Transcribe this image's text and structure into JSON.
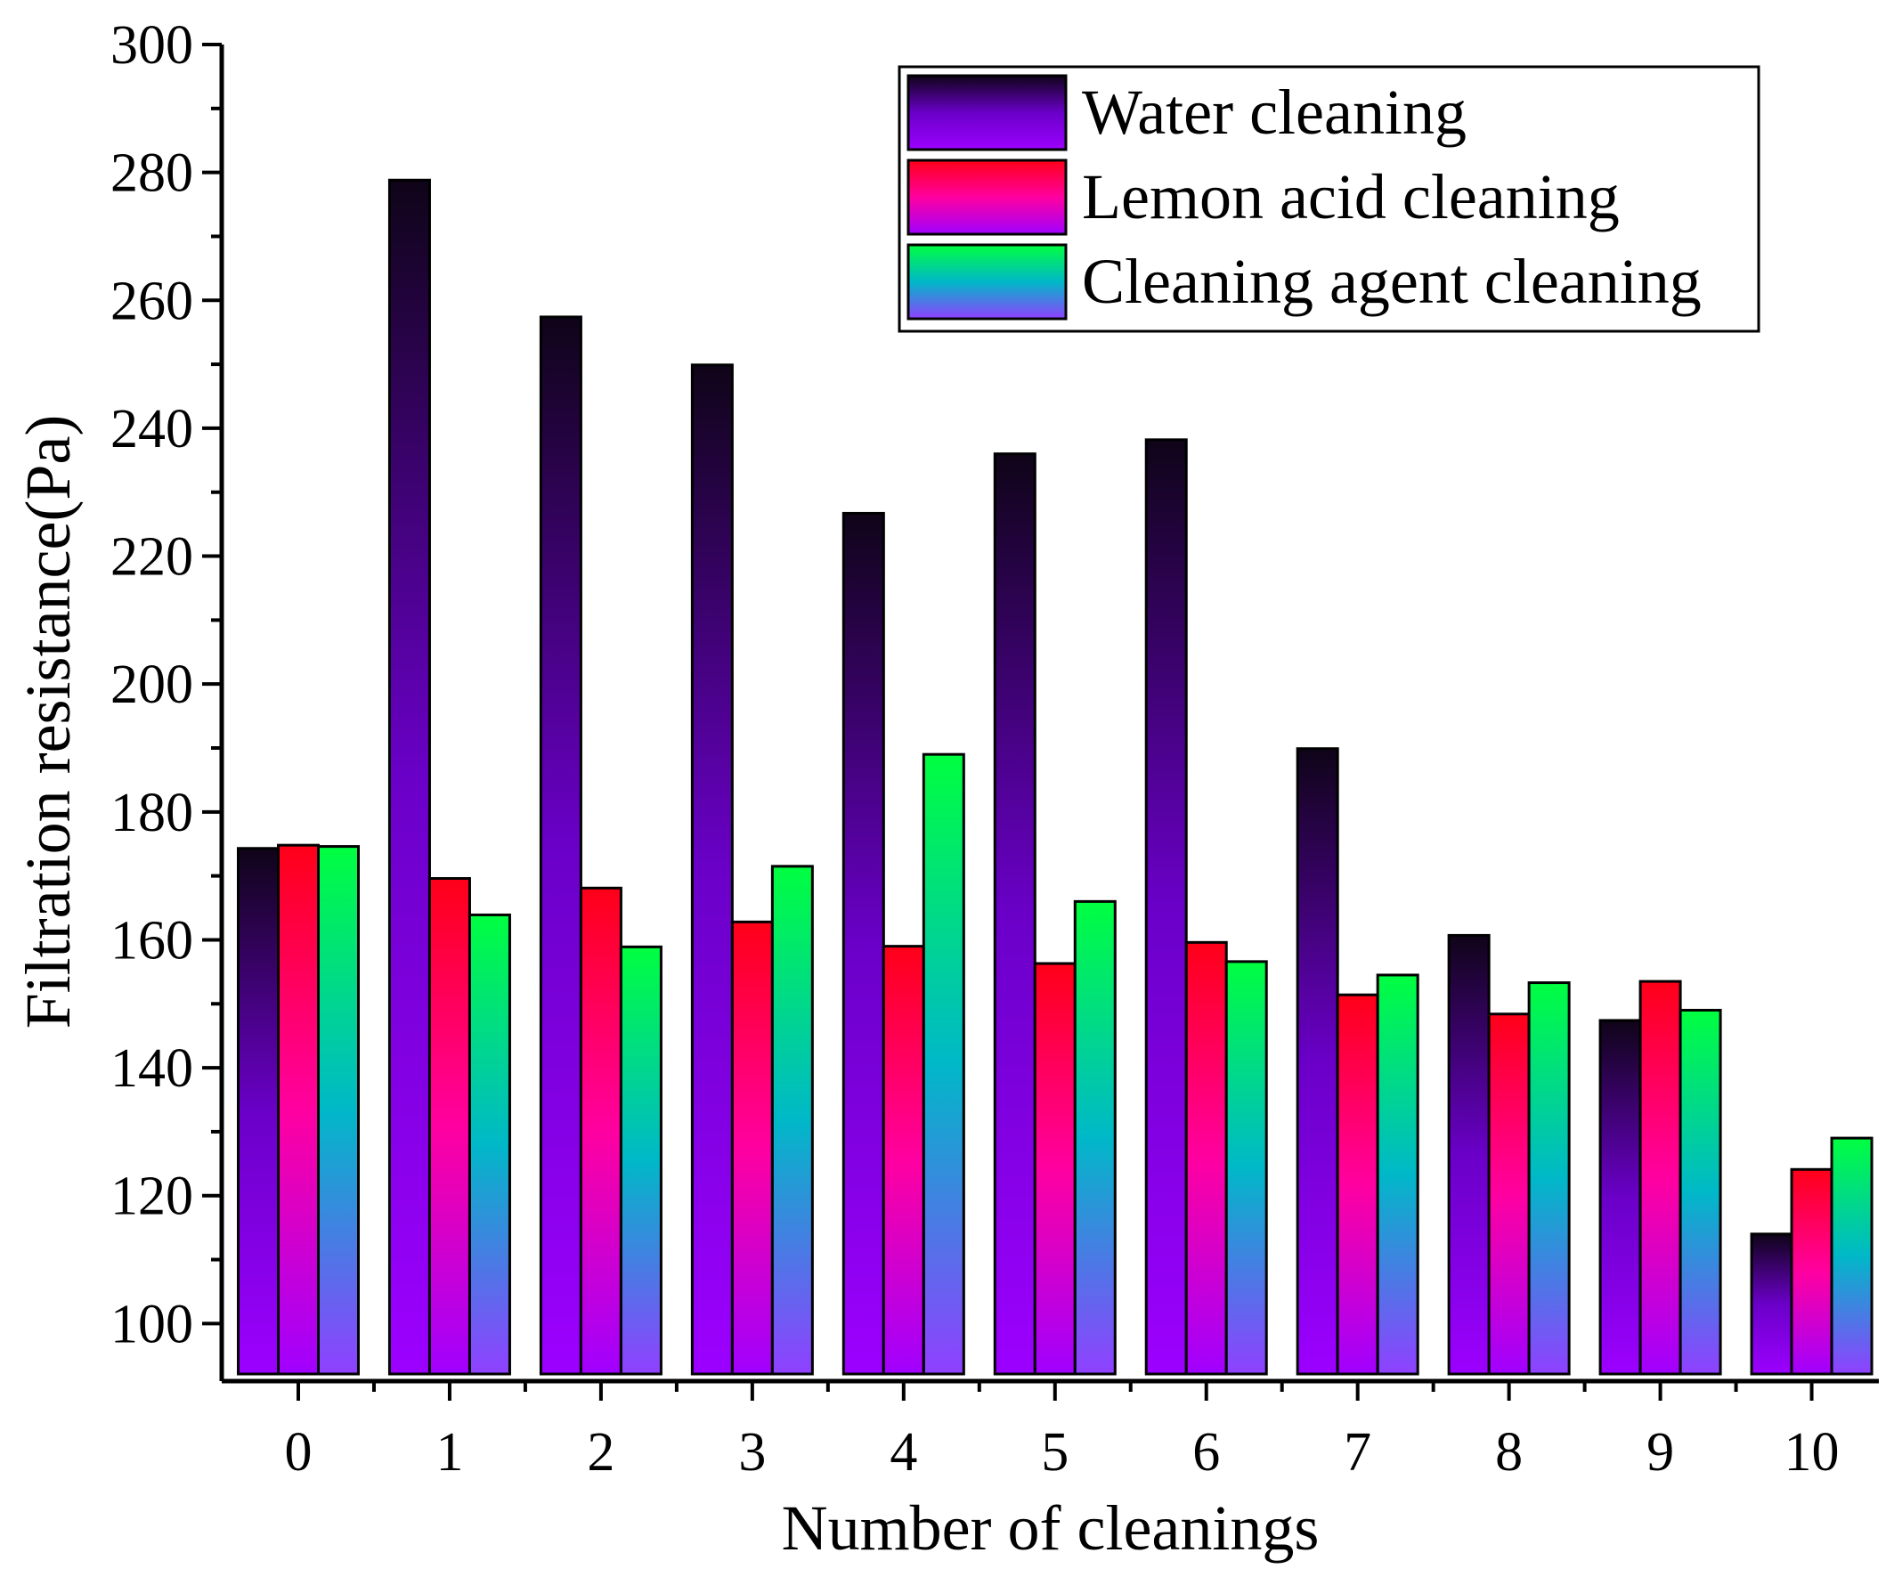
{
  "chart_data": {
    "type": "bar",
    "xlabel": "Number of cleanings",
    "ylabel": "Filtration resistance(Pa)",
    "ylim": [
      91,
      300
    ],
    "yticks": [
      100,
      120,
      140,
      160,
      180,
      200,
      220,
      240,
      260,
      280,
      300
    ],
    "categories": [
      "0",
      "1",
      "2",
      "3",
      "4",
      "5",
      "6",
      "7",
      "8",
      "9",
      "10"
    ],
    "series": [
      {
        "name": "Water cleaning",
        "values": [
          174.3,
          278.8,
          257.4,
          249.9,
          226.7,
          236.0,
          238.2,
          189.9,
          160.7,
          147.4,
          114.0
        ],
        "gradient": [
          "#0f0418",
          "#6a00c8",
          "#9c00ff"
        ]
      },
      {
        "name": "Lemon acid cleaning",
        "values": [
          174.8,
          169.6,
          168.1,
          162.8,
          159.0,
          156.3,
          159.6,
          151.4,
          148.4,
          153.5,
          124.1
        ],
        "gradient": [
          "#ff0018",
          "#ff00a0",
          "#a000ff"
        ]
      },
      {
        "name": "Cleaning agent cleaning",
        "values": [
          174.6,
          163.9,
          158.9,
          171.5,
          189.0,
          166.0,
          156.6,
          154.5,
          153.3,
          149.0,
          129.0
        ],
        "gradient": [
          "#00ff40",
          "#00b8c8",
          "#9040ff"
        ]
      }
    ],
    "legend_position": "top-right",
    "grid": false
  }
}
